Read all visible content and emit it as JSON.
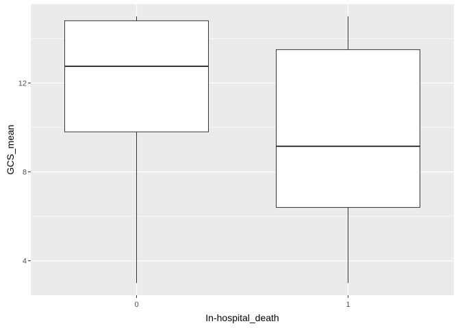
{
  "chart_data": {
    "type": "boxplot",
    "title": "",
    "xlabel": "In-hospital_death",
    "ylabel": "GCS_mean",
    "categories": [
      "0",
      "1"
    ],
    "boxes": [
      {
        "category": "0",
        "whisker_low": 3.0,
        "q1": 9.8,
        "median": 12.75,
        "q3": 14.8,
        "whisker_high": 15.0
      },
      {
        "category": "1",
        "whisker_low": 3.0,
        "q1": 6.4,
        "median": 9.15,
        "q3": 13.5,
        "whisker_high": 15.0
      }
    ],
    "yticks": [
      4,
      8,
      12
    ],
    "ylim": [
      2.45,
      15.55
    ],
    "grid": true,
    "colors": {
      "panel": "#ebebeb",
      "grid": "#ffffff",
      "box_fill": "#ffffff",
      "box_stroke": "#333333",
      "tick_mark": "#333333"
    }
  }
}
